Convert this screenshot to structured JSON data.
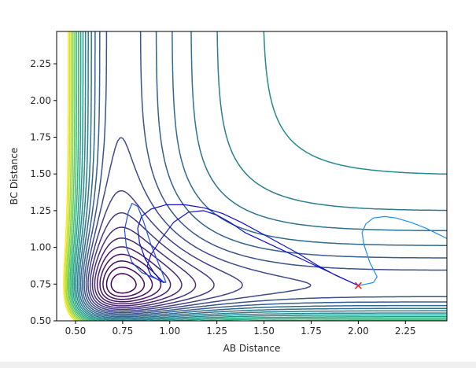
{
  "chart_data": {
    "type": "contour",
    "title": "",
    "xlabel": "AB Distance",
    "ylabel": "BC Distance",
    "xlim": [
      0.4,
      2.47
    ],
    "ylim": [
      0.5,
      2.47
    ],
    "xticks": [
      0.5,
      0.75,
      1.0,
      1.25,
      1.5,
      1.75,
      2.0,
      2.25
    ],
    "xtick_labels": [
      "0.50",
      "0.75",
      "1.00",
      "1.25",
      "1.50",
      "1.75",
      "2.00",
      "2.25"
    ],
    "yticks": [
      0.5,
      0.75,
      1.0,
      1.25,
      1.5,
      1.75,
      2.0,
      2.25
    ],
    "ytick_labels": [
      "0.50",
      "0.75",
      "1.00",
      "1.25",
      "1.50",
      "1.75",
      "2.00",
      "2.25"
    ],
    "grid": false,
    "legend": "none",
    "colormap": "viridis",
    "contour_levels": 25,
    "colors": {
      "low": "#440154",
      "high": "#fde725",
      "trajectory_dark": "#1010c8",
      "trajectory_mid": "#1f4fe0",
      "trajectory_light": "#1f8ff0",
      "marker": "#e8202a"
    },
    "trajectories": [
      {
        "color": "#1010c8",
        "x": [
          2.0,
          1.9,
          1.8,
          1.7,
          1.6,
          1.5,
          1.4,
          1.32,
          1.25,
          1.18,
          1.1,
          1.02,
          0.95,
          0.9,
          0.88,
          0.9,
          0.95,
          0.97,
          0.92,
          0.87,
          0.84,
          0.83,
          0.85,
          0.9,
          0.98,
          1.08,
          1.18,
          1.28,
          1.38,
          1.48,
          1.58,
          1.68,
          1.78,
          1.88,
          2.0
        ],
        "y": [
          0.74,
          0.8,
          0.86,
          0.92,
          0.98,
          1.04,
          1.1,
          1.17,
          1.22,
          1.25,
          1.24,
          1.17,
          1.05,
          0.95,
          0.87,
          0.81,
          0.77,
          0.76,
          0.82,
          0.92,
          1.03,
          1.13,
          1.21,
          1.26,
          1.29,
          1.29,
          1.27,
          1.23,
          1.17,
          1.1,
          1.03,
          0.96,
          0.88,
          0.81,
          0.74
        ]
      },
      {
        "color": "#1f4fe0",
        "x": [
          0.98,
          0.92,
          0.85,
          0.8,
          0.77,
          0.76,
          0.78,
          0.8,
          0.83,
          0.86,
          0.9,
          0.95,
          0.98
        ],
        "y": [
          0.76,
          0.79,
          0.83,
          0.9,
          1.0,
          1.12,
          1.24,
          1.3,
          1.28,
          1.18,
          1.02,
          0.86,
          0.76
        ]
      },
      {
        "color": "#1f8ff0",
        "x": [
          2.0,
          2.04,
          2.08,
          2.1,
          2.06,
          2.03,
          2.02,
          2.04,
          2.08,
          2.14,
          2.2,
          2.28,
          2.36,
          2.44,
          2.47
        ],
        "y": [
          0.74,
          0.75,
          0.76,
          0.8,
          0.9,
          1.02,
          1.1,
          1.16,
          1.2,
          1.21,
          1.2,
          1.17,
          1.13,
          1.08,
          1.06
        ]
      }
    ],
    "markers": [
      {
        "symbol": "x",
        "x": 2.0,
        "y": 0.74,
        "color": "#e8202a"
      }
    ]
  }
}
